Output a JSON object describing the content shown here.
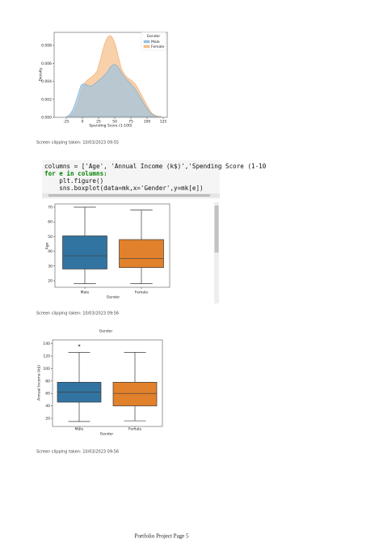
{
  "figures": [
    {
      "type": "kde",
      "ylabel": "Density",
      "xlabel": "Spending Score (1-100)",
      "ylim": [
        0,
        0.00945
      ],
      "xlim": [
        -43.75,
        131.25
      ],
      "yticks": [
        {
          "value": 0,
          "label": "0.000"
        },
        {
          "value": 0.002,
          "label": "0.002"
        },
        {
          "value": 0.004,
          "label": "0.004"
        },
        {
          "value": 0.006,
          "label": "0.006"
        },
        {
          "value": 0.008,
          "label": "0.008"
        }
      ],
      "xticks": [
        -25,
        0,
        25,
        50,
        75,
        100,
        125
      ],
      "legend": {
        "title": "Gender",
        "entries": [
          "Male",
          "Female"
        ]
      }
    },
    {
      "type": "box",
      "ylabel": "Age",
      "xlabel": "Gender",
      "categories": [
        "Male",
        "Female"
      ],
      "ylim": [
        15.6,
        72.2
      ],
      "yticks": [
        20,
        30,
        40,
        50,
        60,
        70
      ],
      "boxes": [
        {
          "whislo": 18,
          "q1": 28,
          "med": 37,
          "q3": 50.5,
          "whishi": 70,
          "fliers": []
        },
        {
          "whislo": 18,
          "q1": 29,
          "med": 35,
          "q3": 48,
          "whishi": 68,
          "fliers": []
        }
      ]
    },
    {
      "type": "box",
      "title": "Gender",
      "ylabel": "Annual Income (k$)",
      "xlabel": "Gender",
      "categories": [
        "Male",
        "Female"
      ],
      "ylim": [
        7,
        146
      ],
      "yticks": [
        20,
        40,
        60,
        80,
        100,
        120,
        140
      ],
      "boxes": [
        {
          "whislo": 15,
          "q1": 46,
          "med": 62,
          "q3": 78,
          "whishi": 126,
          "fliers": [
            137
          ]
        },
        {
          "whislo": 16,
          "q1": 40,
          "med": 60,
          "q3": 78,
          "whishi": 126,
          "fliers": []
        }
      ]
    }
  ],
  "captions": [
    "Screen clipping taken: 10/03/2023 09:55",
    "Screen clipping taken: 10/03/2023 09:56",
    "Screen clipping taken: 10/03/2023 09:56"
  ],
  "code": [
    "columns = ['Age', 'Annual Income (k$)','Spending Score (1-10",
    "for e in columns:",
    "    plt.figure()",
    "    sns.boxplot(data=mk,x='Gender',y=mk[e])"
  ],
  "footer": "Portfolio Project Page 5"
}
